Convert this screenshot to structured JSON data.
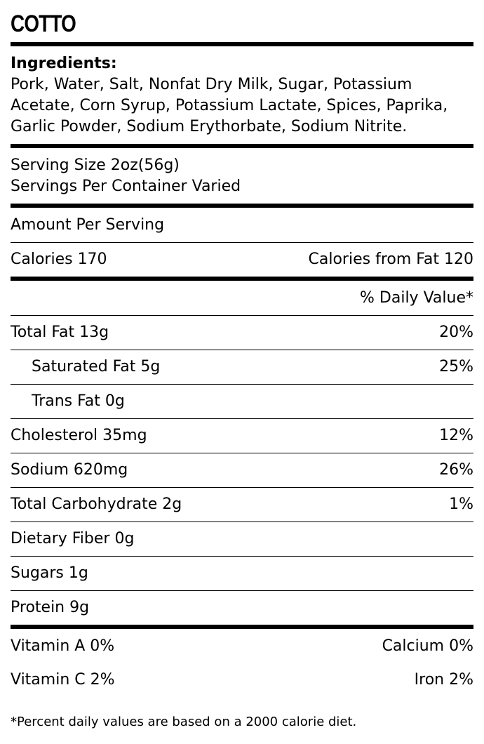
{
  "title": "COTTO",
  "ingredients": {
    "heading": "Ingredients:",
    "text": "Pork, Water, Salt, Nonfat Dry Milk, Sugar, Potassium Acetate, Corn Syrup, Potassium Lactate, Spices, Paprika, Garlic Powder, Sodium Erythorbate, Sodium Nitrite."
  },
  "serving": {
    "size": "Serving Size 2oz(56g)",
    "per_container": "Servings Per Container Varied"
  },
  "amount_per_serving": "Amount Per Serving",
  "calories": {
    "label": "Calories 170",
    "from_fat": "Calories from Fat 120"
  },
  "daily_value_header": "% Daily Value*",
  "nutrients": [
    {
      "label": "Total Fat 13g",
      "dv": "20%"
    },
    {
      "label": "Saturated Fat 5g",
      "dv": "25%"
    },
    {
      "label": "Trans Fat 0g",
      "dv": ""
    },
    {
      "label": "Cholesterol 35mg",
      "dv": "12%"
    },
    {
      "label": "Sodium 620mg",
      "dv": "26%"
    },
    {
      "label": "Total Carbohydrate 2g",
      "dv": "1%"
    },
    {
      "label": "Dietary Fiber 0g",
      "dv": ""
    },
    {
      "label": "Sugars 1g",
      "dv": ""
    },
    {
      "label": "Protein 9g",
      "dv": ""
    }
  ],
  "vitamins": {
    "vitamin_a": "Vitamin A 0%",
    "calcium": "Calcium 0%",
    "vitamin_c": "Vitamin C 2%",
    "iron": "Iron 2%"
  },
  "footnote": "*Percent daily values are based on a 2000 calorie diet."
}
